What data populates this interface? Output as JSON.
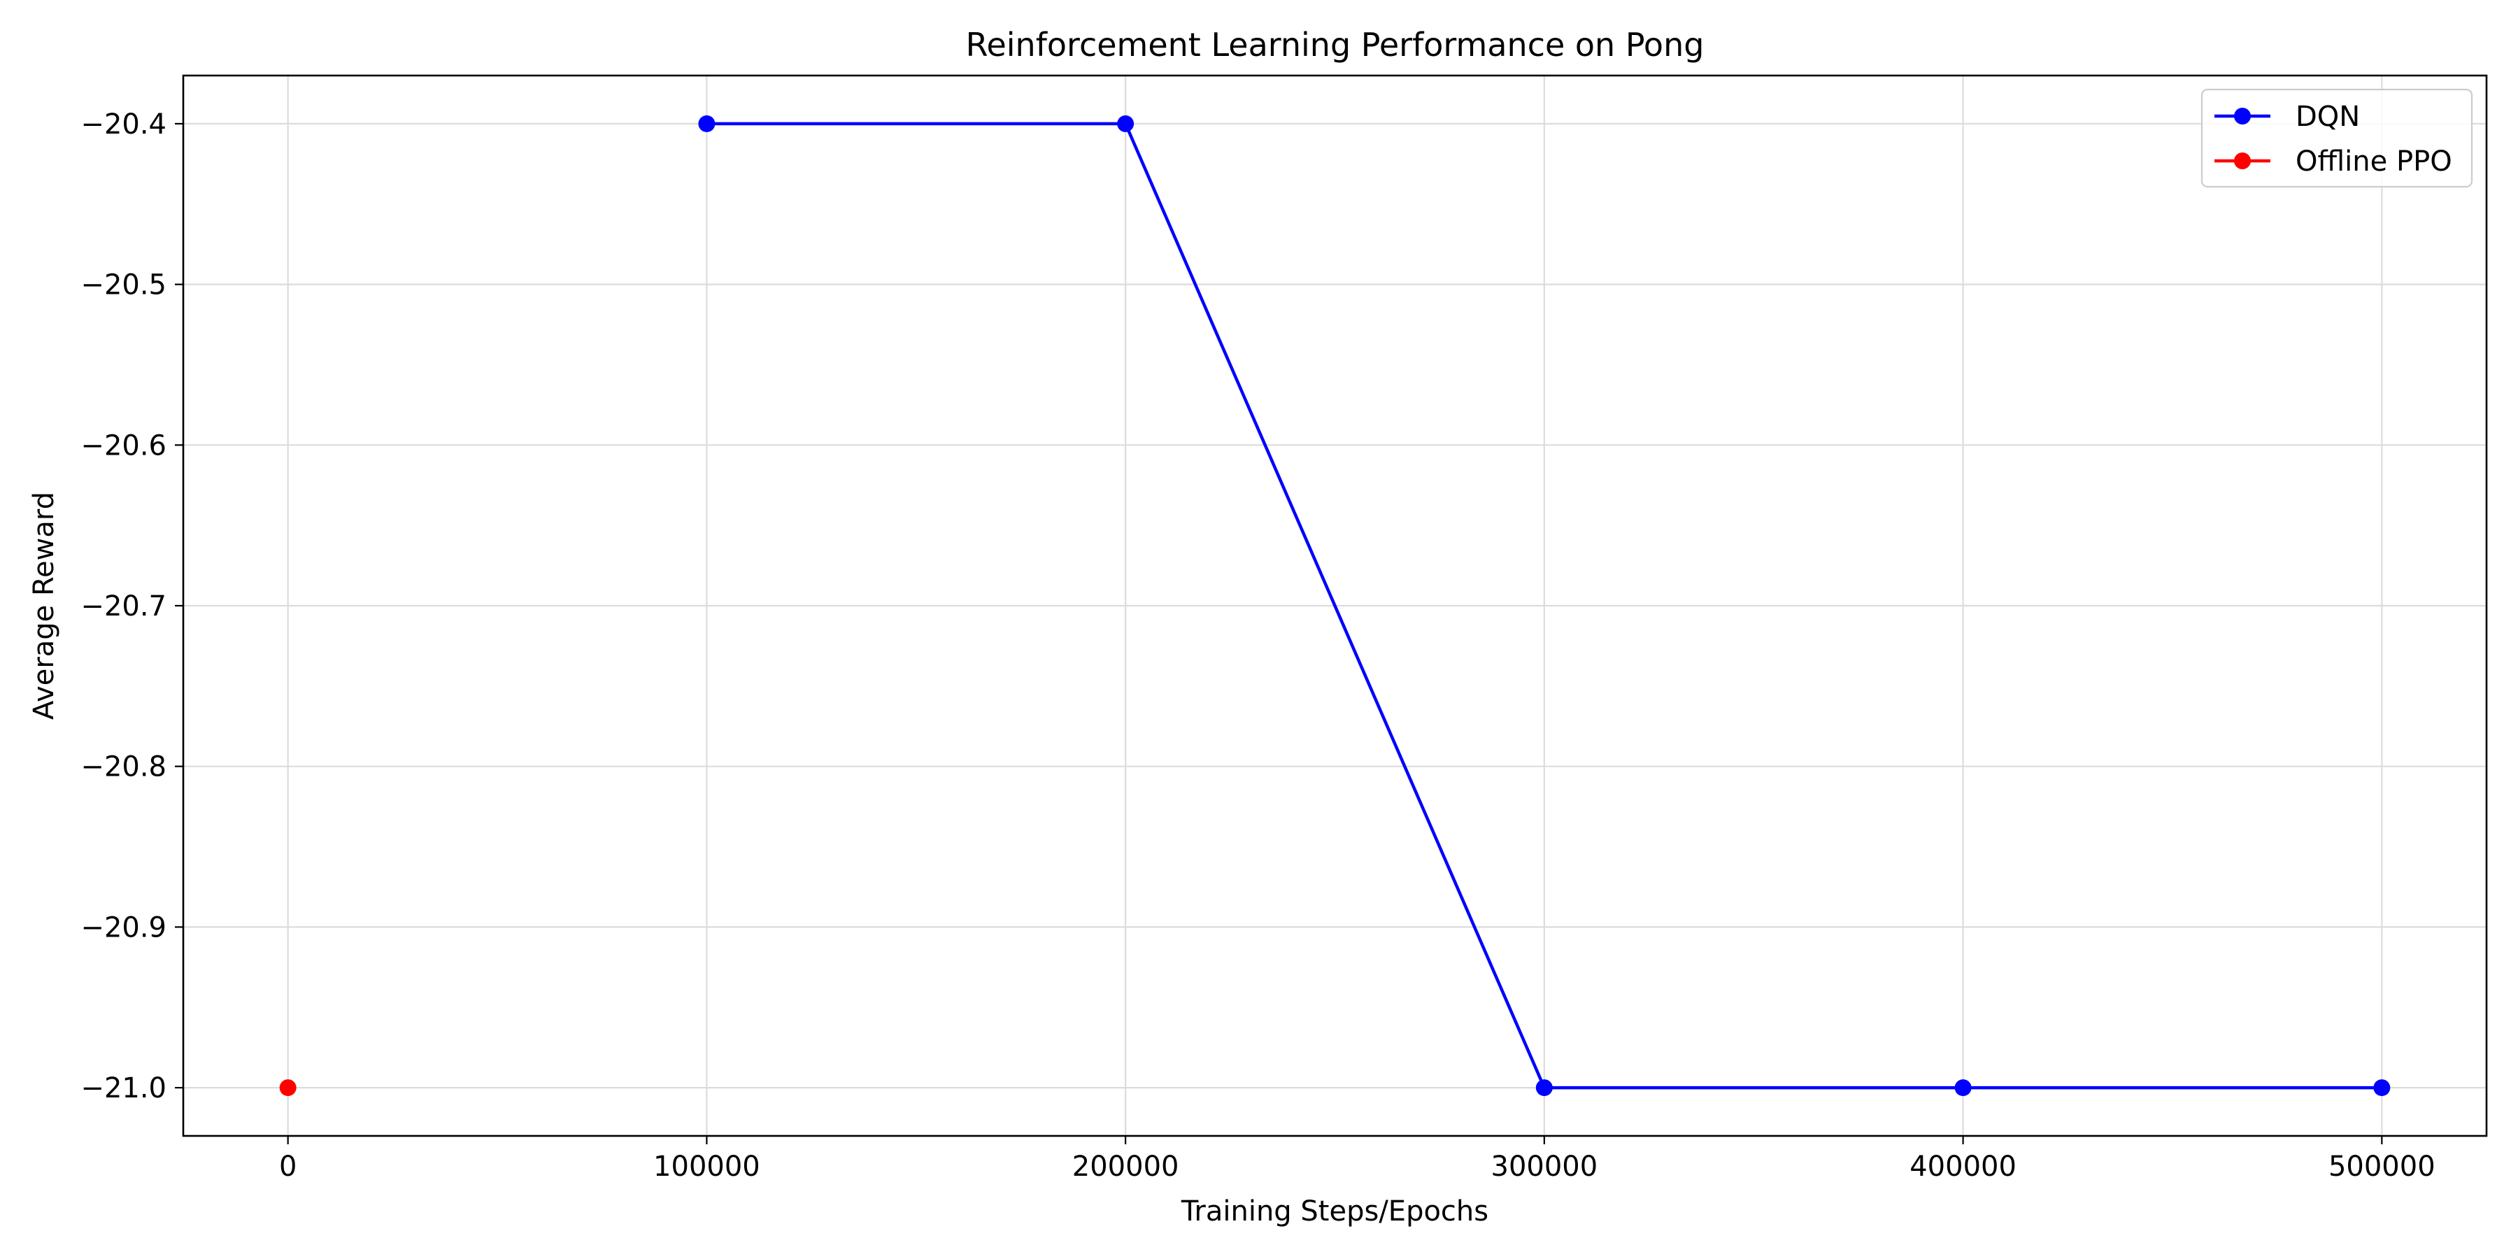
{
  "chart_data": {
    "type": "line",
    "title": "Reinforcement Learning Performance on Pong",
    "xlabel": "Training Steps/Epochs",
    "ylabel": "Average Reward",
    "xlim": [
      -25000,
      525000
    ],
    "ylim": [
      -21.03,
      -20.37
    ],
    "xticks": [
      0,
      100000,
      200000,
      300000,
      400000,
      500000
    ],
    "xtick_labels": [
      "0",
      "100000",
      "200000",
      "300000",
      "400000",
      "500000"
    ],
    "yticks": [
      -20.4,
      -20.5,
      -20.6,
      -20.7,
      -20.8,
      -20.9,
      -21.0
    ],
    "ytick_labels": [
      "−20.4",
      "−20.5",
      "−20.6",
      "−20.7",
      "−20.8",
      "−20.9",
      "−21.0"
    ],
    "grid": true,
    "legend_position": "top-right",
    "series": [
      {
        "name": "DQN",
        "color": "#0000ff",
        "marker": "circle",
        "x": [
          100000,
          200000,
          300000,
          400000,
          500000
        ],
        "y": [
          -20.4,
          -20.4,
          -21.0,
          -21.0,
          -21.0
        ]
      },
      {
        "name": "Offline PPO",
        "color": "#ff0000",
        "marker": "circle",
        "x": [
          0
        ],
        "y": [
          -21.0
        ]
      }
    ]
  }
}
